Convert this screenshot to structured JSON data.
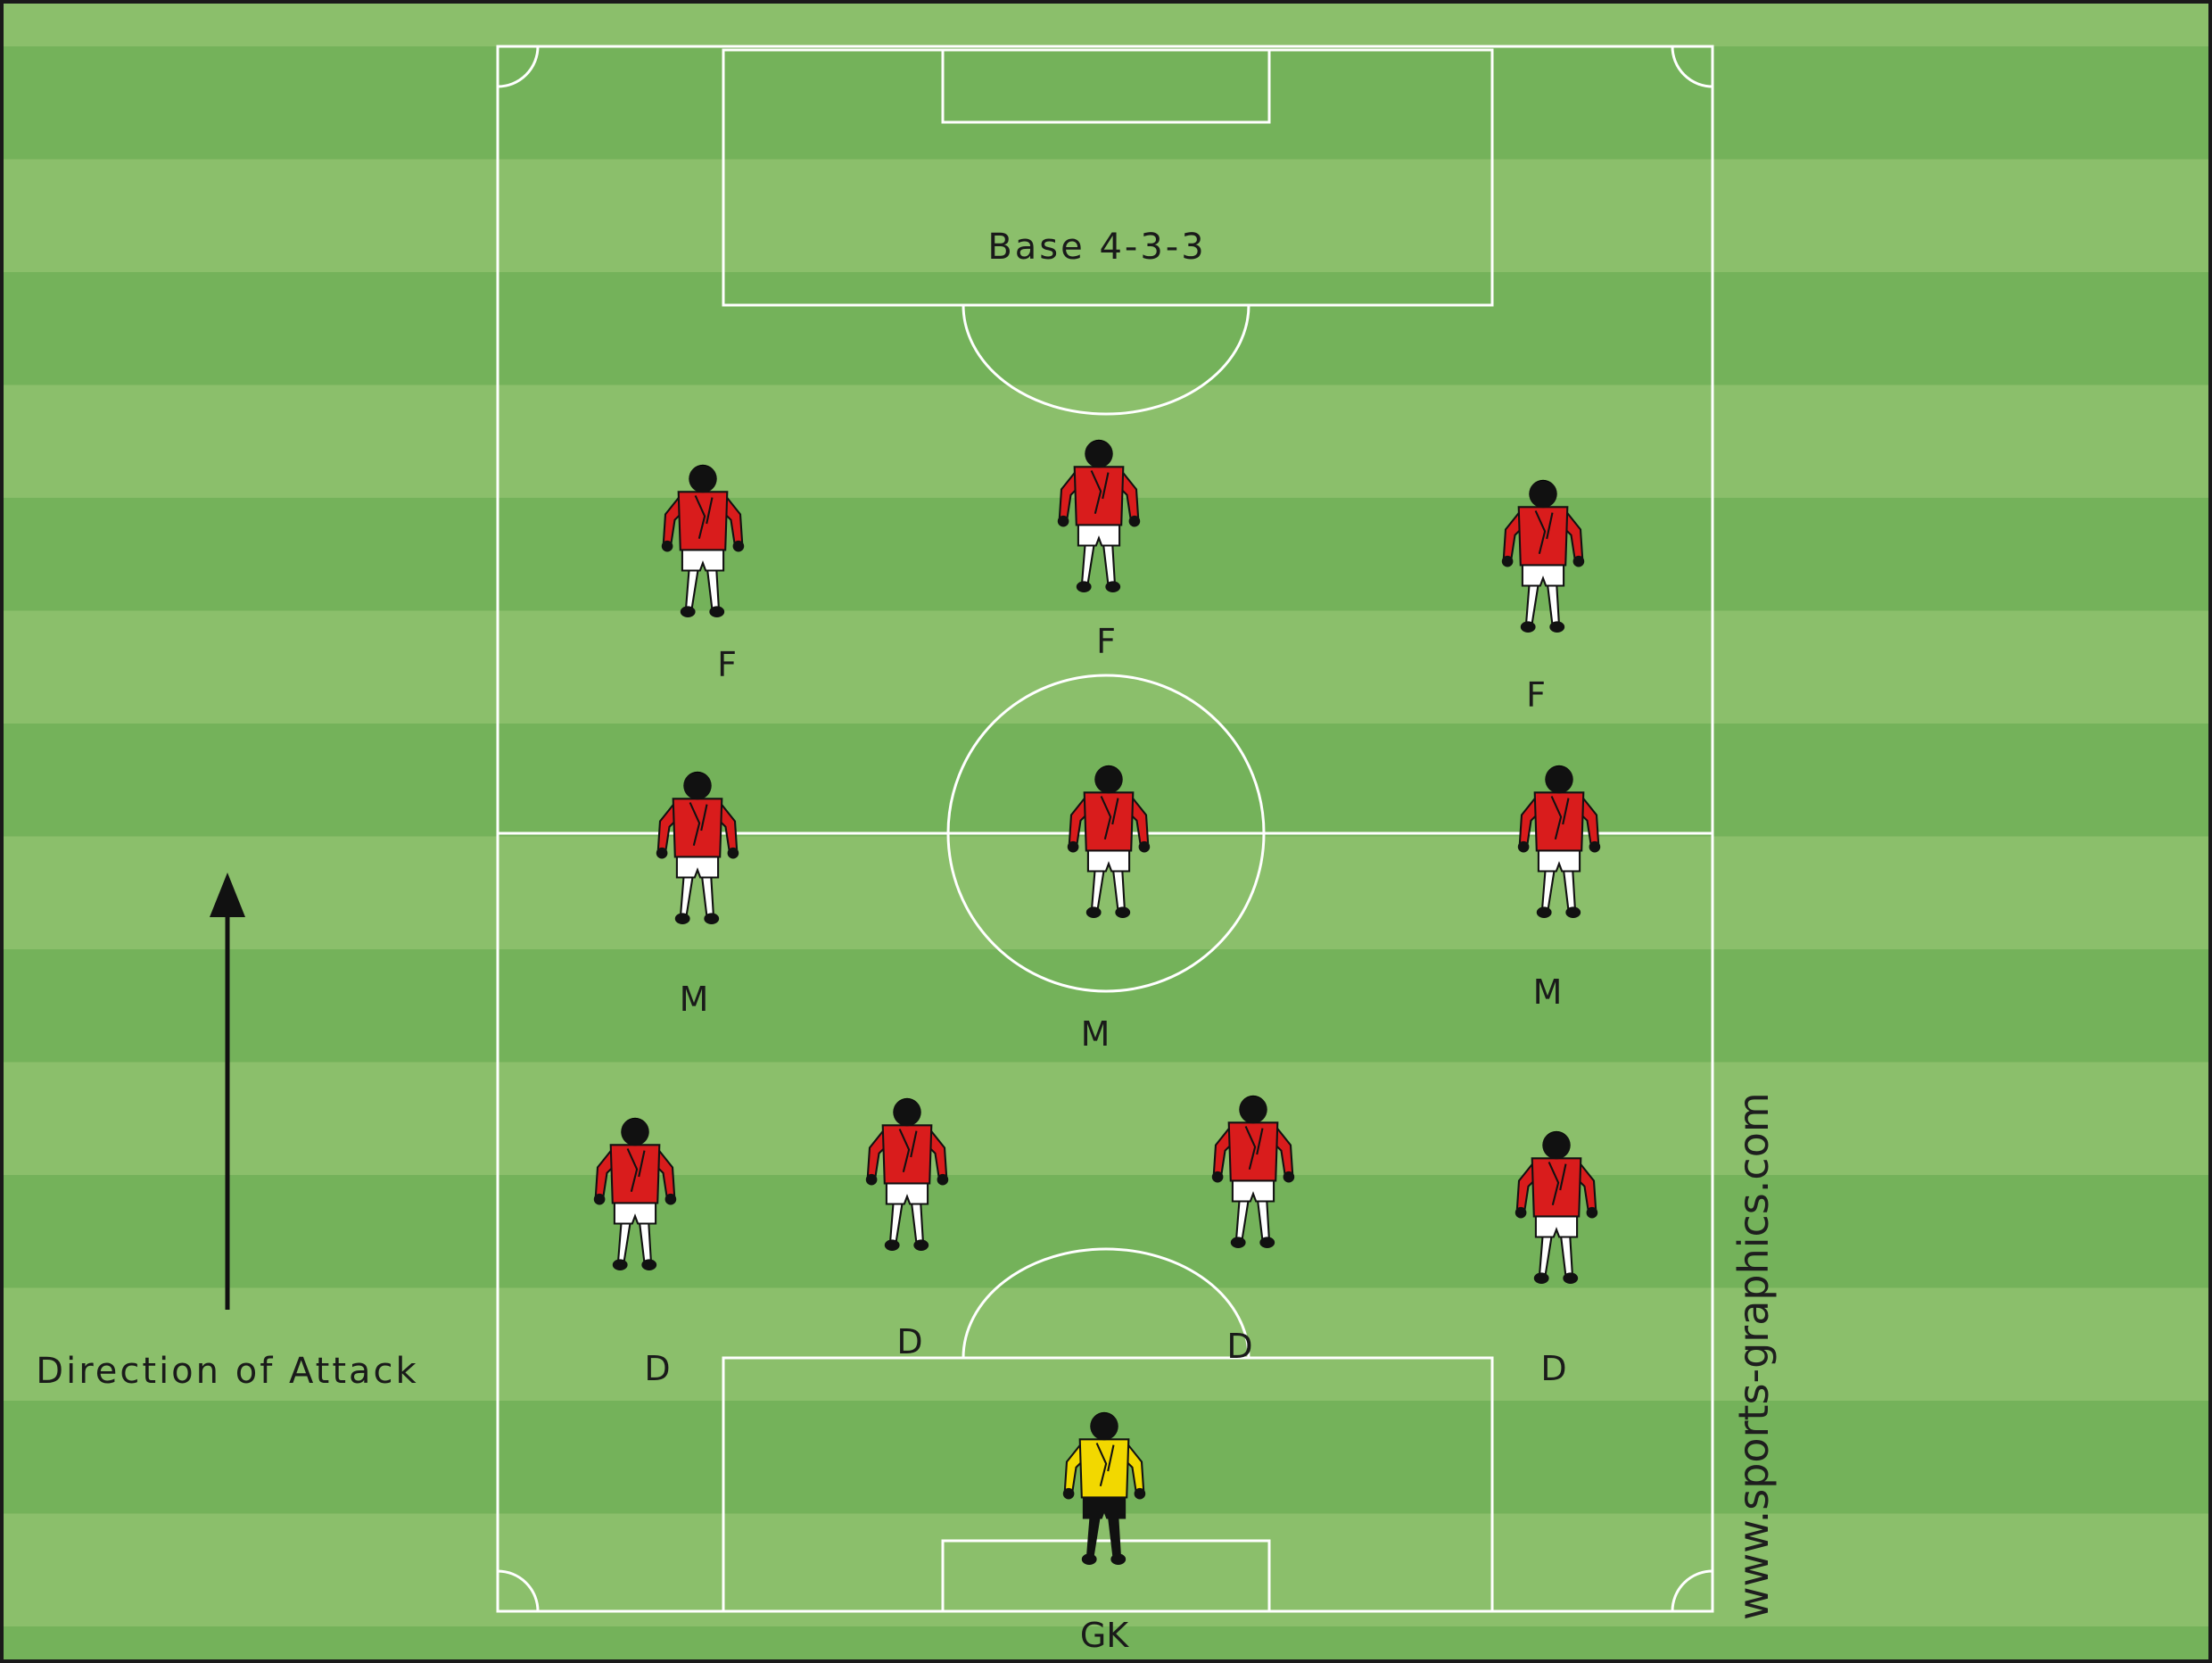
{
  "diagram": {
    "title": "Base 4-3-3",
    "direction_label": "Direction of Attack",
    "watermark": "www.sports-graphics.com"
  },
  "colors": {
    "grass_light": "#8bbf6b",
    "grass_dark": "#74b25a",
    "line": "#ffffff",
    "shirt": "#d91c1c",
    "keeper_shirt": "#f2d800",
    "shorts": "#ffffff",
    "hair": "#111111",
    "skin": "#111111",
    "border": "#1a1a1a"
  },
  "players": [
    {
      "label": "F"
    },
    {
      "label": "F"
    },
    {
      "label": "F"
    },
    {
      "label": "M"
    },
    {
      "label": "M"
    },
    {
      "label": "M"
    },
    {
      "label": "D"
    },
    {
      "label": "D"
    },
    {
      "label": "D"
    },
    {
      "label": "D"
    },
    {
      "label": "GK"
    }
  ]
}
